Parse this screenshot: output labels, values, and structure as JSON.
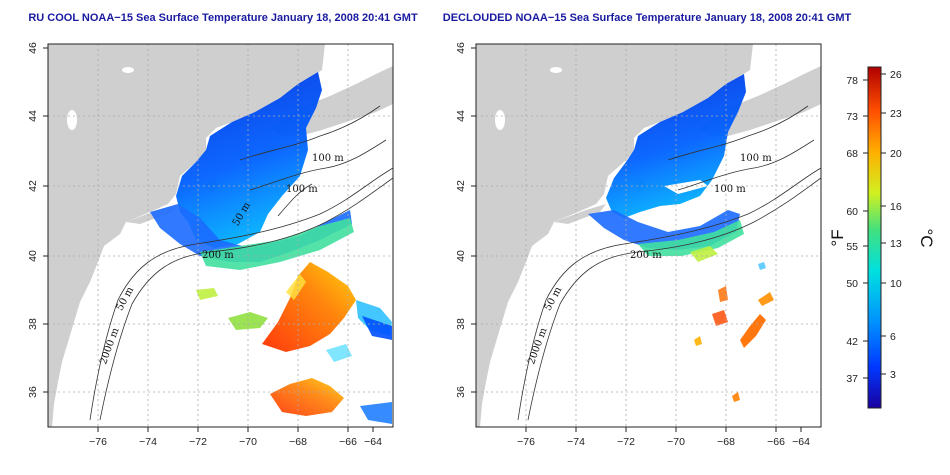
{
  "maps": [
    {
      "title": "RU COOL NOAA−15 Sea Surface Temperature January 18, 2008 20:41 GMT",
      "contour_labels": [
        "100 m",
        "100 m",
        "50 m",
        "200 m",
        "50 m",
        "2000 m"
      ]
    },
    {
      "title": "DECLOUDED NOAA−15 Sea Surface Temperature January 18, 2008 20:41 GMT",
      "contour_labels": [
        "100 m",
        "100 m",
        "200 m",
        "50 m",
        "2000 m"
      ]
    }
  ],
  "axes": {
    "x_ticks": [
      "−76",
      "−74",
      "−72",
      "−70",
      "−68",
      "−66",
      "−64"
    ],
    "y_ticks": [
      "46",
      "44",
      "42",
      "40",
      "38",
      "36"
    ]
  },
  "colorbar": {
    "fahrenheit_label": "°F",
    "celsius_label": "°C",
    "fahrenheit_ticks": [
      "78",
      "73",
      "68",
      "60",
      "55",
      "50",
      "42",
      "37"
    ],
    "celsius_ticks": [
      "26",
      "23",
      "20",
      "16",
      "13",
      "10",
      "6",
      "3"
    ],
    "colors": [
      "#1a00a0",
      "#0038ff",
      "#0090ff",
      "#00e0e0",
      "#40e080",
      "#d0f020",
      "#ffb000",
      "#ff5000",
      "#b00000"
    ]
  },
  "colors": {
    "land": "#cfcfcf",
    "frame": "#222222",
    "title": "#1a1aa0"
  }
}
